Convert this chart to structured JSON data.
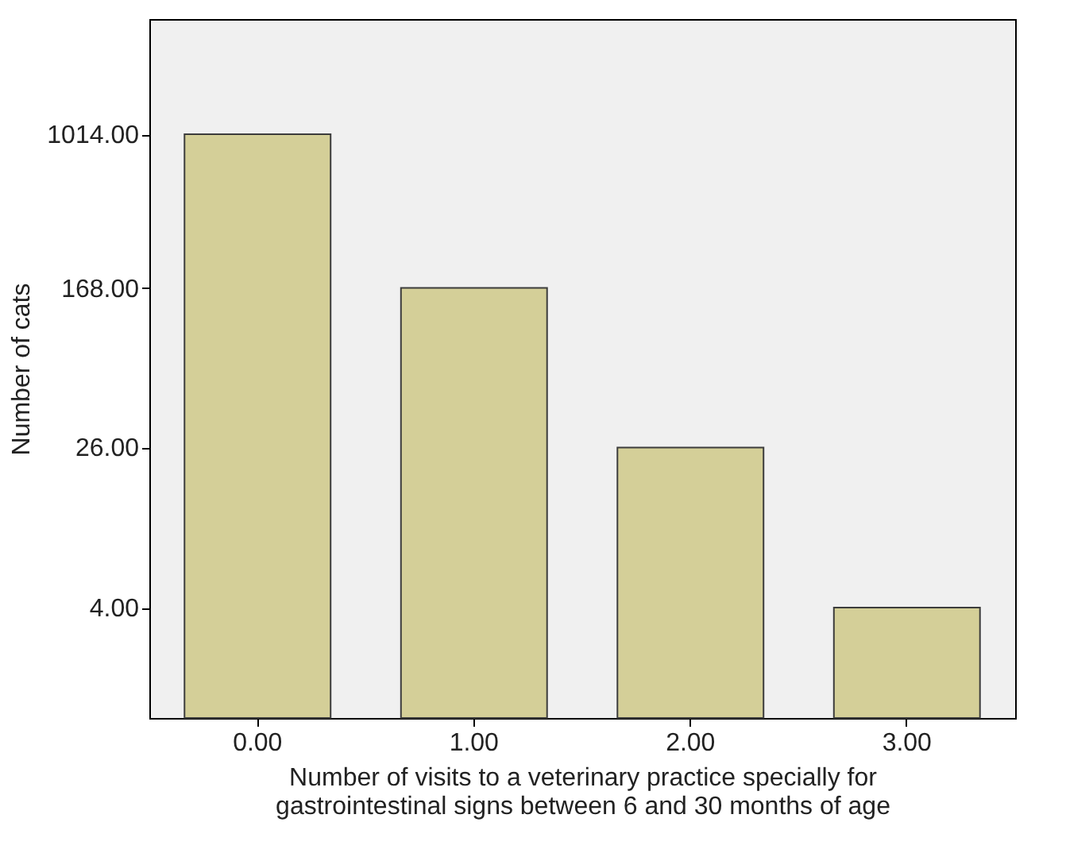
{
  "chart_data": {
    "type": "bar",
    "xlabel": "Number of visits to a veterinary practice specially for gastrointestinal signs between 6 and 30 months of age",
    "ylabel": "Number of cats",
    "categories": [
      "0.00",
      "1.00",
      "2.00",
      "3.00"
    ],
    "values": [
      1014,
      168,
      26,
      4
    ],
    "color": "#d4cf98",
    "log": true,
    "ylim": [
      1.1,
      3900
    ],
    "yticks": [
      {
        "value": 4,
        "label": "4.00"
      },
      {
        "value": 26,
        "label": "26.00"
      },
      {
        "value": 168,
        "label": "168.00"
      },
      {
        "value": 1014,
        "label": "1014.00"
      }
    ],
    "grid": false
  }
}
